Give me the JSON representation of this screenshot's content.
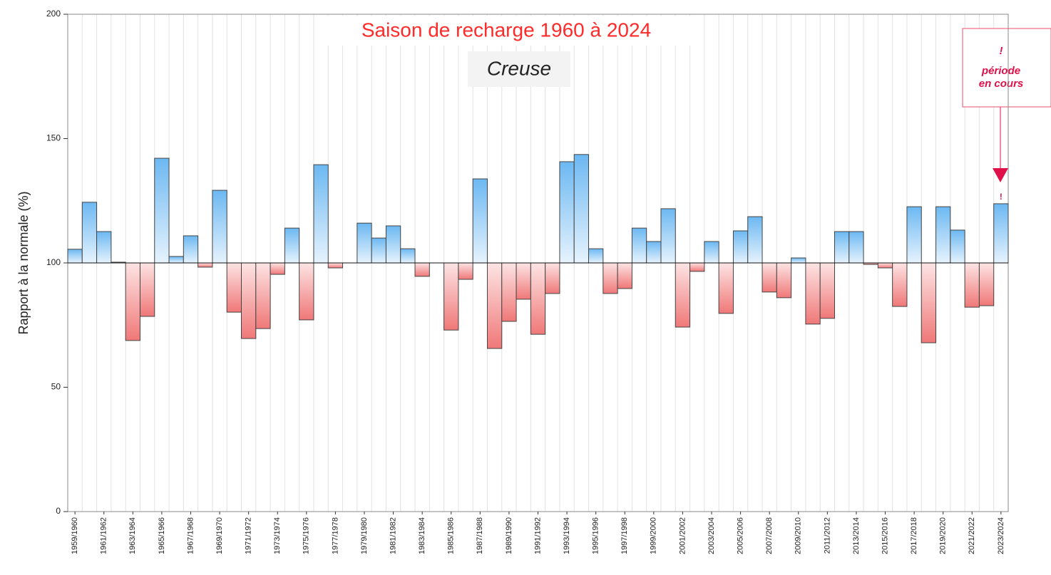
{
  "chart_data": {
    "type": "bar",
    "title": "Saison de recharge 1960 à 2024",
    "subtitle": "Creuse",
    "ylabel": "Rapport à la normale (%)",
    "annotation": [
      "!",
      "période",
      "en cours"
    ],
    "current_marker": "!",
    "categories": [
      "1959/1960",
      null,
      "1961/1962",
      null,
      "1963/1964",
      null,
      "1965/1966",
      null,
      "1967/1968",
      null,
      "1969/1970",
      null,
      "1971/1972",
      null,
      "1973/1974",
      null,
      "1975/1976",
      null,
      "1977/1978",
      null,
      "1979/1980",
      null,
      "1981/1982",
      null,
      "1983/1984",
      null,
      "1985/1986",
      null,
      "1987/1988",
      null,
      "1989/1990",
      null,
      "1991/1992",
      null,
      "1993/1994",
      null,
      "1995/1996",
      null,
      "1997/1998",
      null,
      "1999/2000",
      null,
      "2001/2002",
      null,
      "2003/2004",
      null,
      "2005/2006",
      null,
      "2007/2008",
      null,
      "2009/2010",
      null,
      "2011/2012",
      null,
      "2013/2014",
      null,
      "2015/2016",
      null,
      "2017/2018",
      null,
      "2019/2020",
      null,
      "2021/2022",
      null,
      "2023/2024"
    ],
    "values": [
      105.5,
      124.4,
      112.6,
      100.3,
      68.8,
      78.5,
      142.1,
      102.6,
      110.9,
      98.3,
      129.2,
      80.2,
      69.6,
      73.6,
      95.4,
      114,
      77.1,
      139.5,
      98,
      100,
      116,
      110,
      114.9,
      105.7,
      94.6,
      100,
      73,
      93.4,
      133.8,
      65.6,
      76.5,
      85.4,
      71.3,
      87.7,
      140.7,
      143.6,
      105.7,
      87.7,
      89.7,
      114,
      108.6,
      121.8,
      74.2,
      96.6,
      108.6,
      79.7,
      112.9,
      118.6,
      88.3,
      86,
      102,
      75.4,
      77.7,
      112.6,
      112.6,
      99.4,
      98,
      82.5,
      122.6,
      67.9,
      122.6,
      113.2,
      82.2,
      82.8,
      123.8
    ],
    "baseline": 100,
    "colors": {
      "above": "#6cb8f2",
      "below": "#f07878"
    },
    "ylim": [
      0,
      200
    ],
    "yticks": [
      0,
      50,
      100,
      150,
      200
    ]
  }
}
